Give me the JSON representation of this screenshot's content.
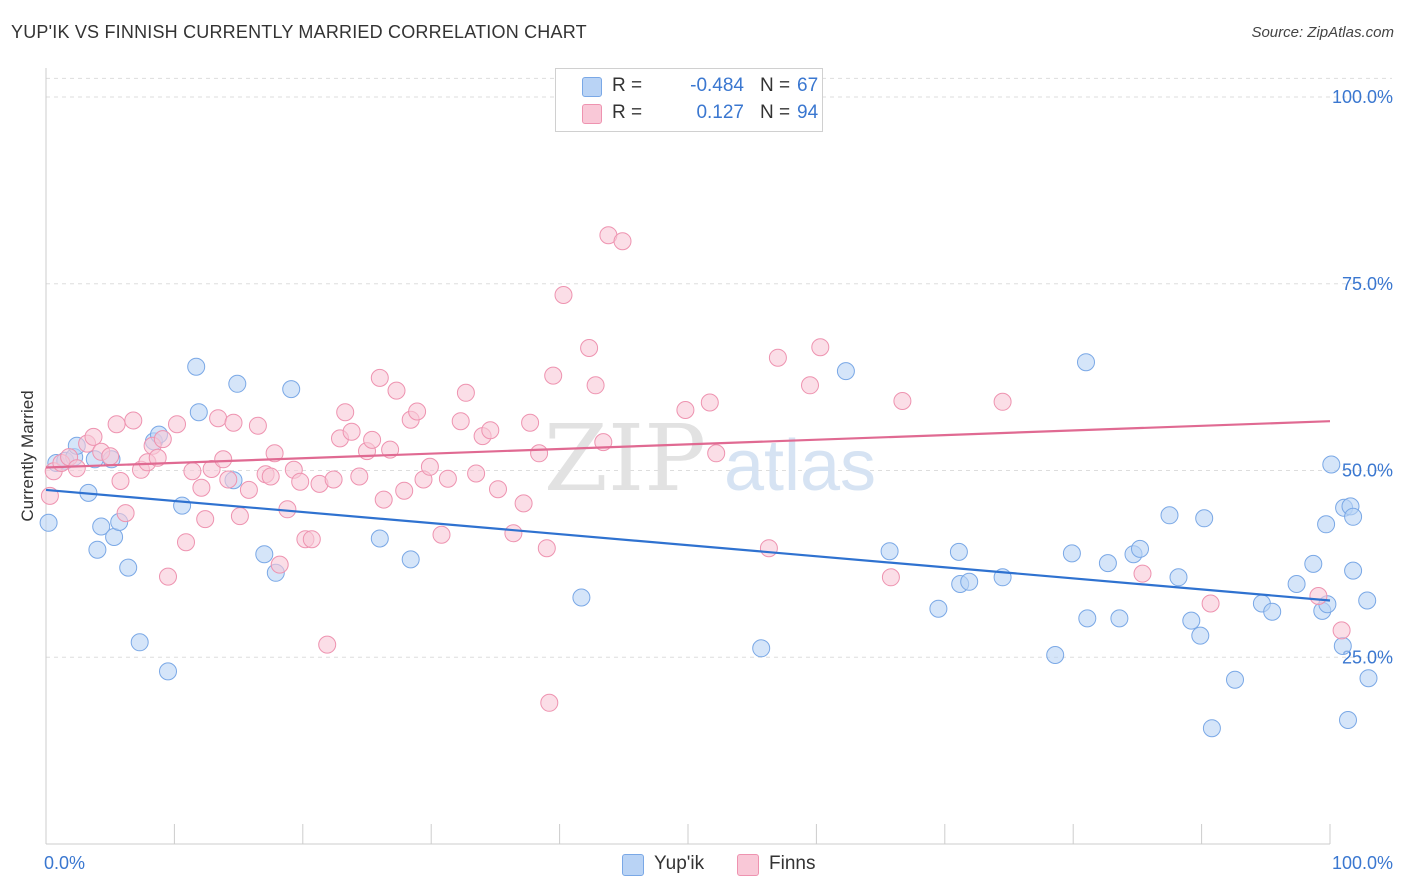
{
  "title": "YUP'IK VS FINNISH CURRENTLY MARRIED CORRELATION CHART",
  "source": "Source: ZipAtlas.com",
  "watermark": {
    "zip": "ZIP",
    "atlas": "atlas"
  },
  "stats": [
    {
      "r_label": "R =",
      "r_value": "-0.484",
      "n_label": "N =",
      "n_value": "67",
      "color": "#b9d3f5",
      "border": "#7aa8e6"
    },
    {
      "r_label": "R =",
      "r_value": "0.127",
      "n_label": "N =",
      "n_value": "94",
      "color": "#f9c8d7",
      "border": "#ee93b0"
    }
  ],
  "legend": [
    {
      "label": "Yup'ik",
      "color": "#b9d3f5",
      "border": "#7aa8e6"
    },
    {
      "label": "Finns",
      "color": "#f9c8d7",
      "border": "#ee93b0"
    }
  ],
  "chart_data": {
    "type": "scatter",
    "title": "YUP'IK VS FINNISH CURRENTLY MARRIED CORRELATION CHART",
    "xlabel": "",
    "ylabel": "Currently Married",
    "xlim": [
      0,
      100
    ],
    "ylim": [
      0,
      102.5
    ],
    "x_tick_labels": [
      "0.0%",
      "100.0%"
    ],
    "y_ticks": [
      25,
      50,
      75,
      100
    ],
    "y_tick_labels": [
      "25.0%",
      "50.0%",
      "75.0%",
      "100.0%"
    ],
    "grid": "horizontal dashed",
    "legend_position": "bottom-center",
    "series": [
      {
        "name": "Yup'ik",
        "color": "#7aa8e6",
        "fill": "#b9d3f5",
        "trend_color": "#2f72d0",
        "trend": [
          [
            0,
            47.4
          ],
          [
            100,
            32.6
          ]
        ],
        "points": [
          [
            0.2,
            43
          ],
          [
            0.8,
            51
          ],
          [
            1.5,
            51.3
          ],
          [
            2.2,
            51.8
          ],
          [
            2.4,
            53.3
          ],
          [
            3.3,
            47
          ],
          [
            3.8,
            51.5
          ],
          [
            4,
            39.4
          ],
          [
            4.3,
            42.5
          ],
          [
            5.1,
            51.5
          ],
          [
            5.3,
            41.1
          ],
          [
            5.7,
            43.1
          ],
          [
            6.4,
            37
          ],
          [
            7.3,
            27
          ],
          [
            8.4,
            53.9
          ],
          [
            8.8,
            54.8
          ],
          [
            9.5,
            23.1
          ],
          [
            10.6,
            45.3
          ],
          [
            11.7,
            63.9
          ],
          [
            11.9,
            57.8
          ],
          [
            14.6,
            48.7
          ],
          [
            14.9,
            61.6
          ],
          [
            17,
            38.8
          ],
          [
            17.9,
            36.3
          ],
          [
            19.1,
            60.9
          ],
          [
            26,
            40.9
          ],
          [
            28.4,
            38.1
          ],
          [
            41.7,
            33
          ],
          [
            55.7,
            26.2
          ],
          [
            62.3,
            63.3
          ],
          [
            65.7,
            39.2
          ],
          [
            69.5,
            31.5
          ],
          [
            71.1,
            39.1
          ],
          [
            71.2,
            34.8
          ],
          [
            71.9,
            35.1
          ],
          [
            74.5,
            35.7
          ],
          [
            78.6,
            25.3
          ],
          [
            79.9,
            38.9
          ],
          [
            81,
            64.5
          ],
          [
            81.1,
            30.2
          ],
          [
            82.7,
            37.6
          ],
          [
            83.6,
            30.2
          ],
          [
            84.7,
            38.8
          ],
          [
            85.2,
            39.5
          ],
          [
            87.5,
            44
          ],
          [
            88.2,
            35.7
          ],
          [
            89.2,
            29.9
          ],
          [
            89.9,
            27.9
          ],
          [
            90.2,
            43.6
          ],
          [
            90.8,
            15.5
          ],
          [
            92.6,
            22
          ],
          [
            94.7,
            32.2
          ],
          [
            95.5,
            31.1
          ],
          [
            97.4,
            34.8
          ],
          [
            98.7,
            37.5
          ],
          [
            99.4,
            31.2
          ],
          [
            99.7,
            42.8
          ],
          [
            99.8,
            32.1
          ],
          [
            100.1,
            50.8
          ],
          [
            101,
            26.5
          ],
          [
            101.1,
            45
          ],
          [
            101.4,
            16.6
          ],
          [
            101.6,
            45.2
          ],
          [
            101.8,
            36.6
          ],
          [
            101.8,
            43.8
          ],
          [
            102.9,
            32.6
          ],
          [
            103,
            22.2
          ]
        ]
      },
      {
        "name": "Finns",
        "color": "#ee93b0",
        "fill": "#f9c8d7",
        "trend_color": "#e06a92",
        "trend": [
          [
            0,
            50.4
          ],
          [
            100,
            56.6
          ]
        ],
        "points": [
          [
            0.3,
            46.6
          ],
          [
            0.6,
            49.9
          ],
          [
            1.2,
            51
          ],
          [
            1.8,
            51.8
          ],
          [
            2.4,
            50.3
          ],
          [
            3.2,
            53.6
          ],
          [
            3.7,
            54.5
          ],
          [
            4.3,
            52.5
          ],
          [
            5,
            51.9
          ],
          [
            5.5,
            56.2
          ],
          [
            5.8,
            48.6
          ],
          [
            6.2,
            44.3
          ],
          [
            6.8,
            56.7
          ],
          [
            7.4,
            50.1
          ],
          [
            7.9,
            51.1
          ],
          [
            8.3,
            53.3
          ],
          [
            8.7,
            51.7
          ],
          [
            9.1,
            54.2
          ],
          [
            9.5,
            35.8
          ],
          [
            10.2,
            56.2
          ],
          [
            10.9,
            40.4
          ],
          [
            11.4,
            49.9
          ],
          [
            12.1,
            47.7
          ],
          [
            12.4,
            43.5
          ],
          [
            12.9,
            50.2
          ],
          [
            13.4,
            57
          ],
          [
            13.8,
            51.5
          ],
          [
            14.2,
            48.8
          ],
          [
            14.6,
            56.4
          ],
          [
            15.1,
            43.9
          ],
          [
            15.8,
            47.4
          ],
          [
            16.5,
            56
          ],
          [
            17.1,
            49.5
          ],
          [
            17.5,
            49.2
          ],
          [
            17.8,
            52.3
          ],
          [
            18.2,
            37.4
          ],
          [
            18.8,
            44.8
          ],
          [
            19.3,
            50.1
          ],
          [
            19.8,
            48.5
          ],
          [
            20.2,
            40.8
          ],
          [
            20.7,
            40.8
          ],
          [
            21.3,
            48.2
          ],
          [
            21.9,
            26.7
          ],
          [
            22.4,
            48.8
          ],
          [
            22.9,
            54.3
          ],
          [
            23.3,
            57.8
          ],
          [
            23.8,
            55.2
          ],
          [
            24.4,
            49.2
          ],
          [
            25,
            52.6
          ],
          [
            25.4,
            54.1
          ],
          [
            26,
            62.4
          ],
          [
            26.3,
            46.1
          ],
          [
            26.8,
            52.8
          ],
          [
            27.3,
            60.7
          ],
          [
            27.9,
            47.3
          ],
          [
            28.4,
            56.8
          ],
          [
            28.9,
            57.9
          ],
          [
            29.4,
            48.8
          ],
          [
            29.9,
            50.5
          ],
          [
            30.8,
            41.4
          ],
          [
            31.3,
            48.9
          ],
          [
            32.3,
            56.6
          ],
          [
            32.7,
            60.4
          ],
          [
            33.5,
            49.6
          ],
          [
            34,
            54.6
          ],
          [
            34.6,
            55.4
          ],
          [
            35.2,
            47.5
          ],
          [
            36.4,
            41.6
          ],
          [
            37.2,
            45.6
          ],
          [
            37.7,
            56.4
          ],
          [
            38.4,
            52.3
          ],
          [
            39,
            39.6
          ],
          [
            39.2,
            18.9
          ],
          [
            39.5,
            62.7
          ],
          [
            40.3,
            73.5
          ],
          [
            42.3,
            66.4
          ],
          [
            42.8,
            61.4
          ],
          [
            43.4,
            53.8
          ],
          [
            43.8,
            81.5
          ],
          [
            44.9,
            80.7
          ],
          [
            49.8,
            58.1
          ],
          [
            51.7,
            59.1
          ],
          [
            52.2,
            52.3
          ],
          [
            56.3,
            39.6
          ],
          [
            57,
            65.1
          ],
          [
            59.5,
            61.4
          ],
          [
            60.3,
            66.5
          ],
          [
            65.8,
            35.7
          ],
          [
            66.7,
            59.3
          ],
          [
            74.5,
            59.2
          ],
          [
            85.4,
            36.2
          ],
          [
            90.7,
            32.2
          ],
          [
            99.1,
            33.2
          ],
          [
            100.9,
            28.6
          ]
        ]
      }
    ]
  }
}
